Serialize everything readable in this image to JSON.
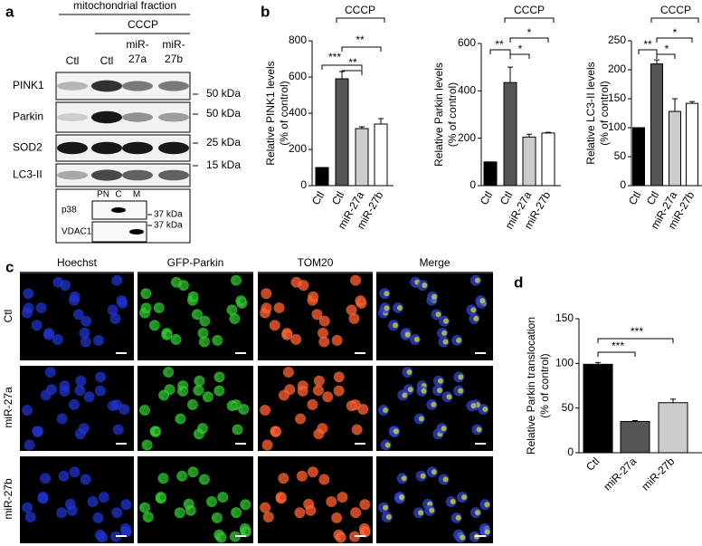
{
  "panel_labels": [
    "a",
    "b",
    "c",
    "d"
  ],
  "blot": {
    "header": "mitochondrial fraction",
    "treatment": "CCCP",
    "lanes": [
      [
        "Ctl"
      ],
      [
        "Ctl"
      ],
      [
        "miR-",
        "27a"
      ],
      [
        "miR-",
        "27b"
      ]
    ],
    "rows": [
      "PINK1",
      "Parkin",
      "SOD2",
      "LC3-II"
    ],
    "markers": [
      "50 kDa",
      "50 kDa",
      "25 kDa",
      "15 kDa"
    ],
    "inset": {
      "lanes": [
        "PN",
        "C",
        "M"
      ],
      "rows": [
        "p38",
        "VDAC1"
      ],
      "markers": [
        "37 kDa",
        "37 kDa"
      ]
    }
  },
  "microscopy": {
    "columns": [
      "Hoechst",
      "GFP-Parkin",
      "TOM20",
      "Merge"
    ],
    "rows": [
      "Ctl",
      "miR-27a",
      "miR-27b"
    ]
  },
  "chart_data": [
    {
      "type": "bar",
      "ylabel": [
        "Relative PINK1 levels",
        "(% of control)"
      ],
      "categories": [
        "Ctl",
        "Ctl",
        "miR-27a",
        "miR-27b"
      ],
      "values": [
        100,
        590,
        315,
        340
      ],
      "errors": [
        0,
        40,
        10,
        30
      ],
      "colors": [
        "#000000",
        "#555555",
        "#cccccc",
        "#ffffff"
      ],
      "ylim": [
        0,
        800
      ],
      "yticks": [
        0,
        200,
        400,
        600,
        800
      ],
      "annotations": [
        "CCCP",
        "**",
        "***",
        "**"
      ]
    },
    {
      "type": "bar",
      "ylabel": [
        "Relative Parkin levels",
        "(% of control)"
      ],
      "categories": [
        "Ctl",
        "Ctl",
        "miR-27a",
        "miR-27b"
      ],
      "values": [
        100,
        435,
        205,
        222
      ],
      "errors": [
        0,
        65,
        12,
        3
      ],
      "colors": [
        "#000000",
        "#555555",
        "#cccccc",
        "#ffffff"
      ],
      "ylim": [
        0,
        600
      ],
      "yticks": [
        0,
        200,
        400,
        600
      ],
      "annotations": [
        "CCCP",
        "*",
        "**",
        "*"
      ]
    },
    {
      "type": "bar",
      "ylabel": [
        "Relative LC3-II levels",
        "(% of control)"
      ],
      "categories": [
        "Ctl",
        "Ctl",
        "miR-27a",
        "miR-27b"
      ],
      "values": [
        100,
        210,
        128,
        142
      ],
      "errors": [
        0,
        7,
        22,
        3
      ],
      "colors": [
        "#000000",
        "#555555",
        "#cccccc",
        "#ffffff"
      ],
      "ylim": [
        0,
        250
      ],
      "yticks": [
        0,
        50,
        100,
        150,
        200,
        250
      ],
      "annotations": [
        "CCCP",
        "*",
        "**",
        "*"
      ]
    },
    {
      "type": "bar",
      "ylabel": [
        "Relative Parkin translocation",
        "(% of control)"
      ],
      "categories": [
        "Ctl",
        "miR-27a",
        "miR-27b"
      ],
      "values": [
        99,
        35,
        56
      ],
      "errors": [
        2,
        1,
        4
      ],
      "colors": [
        "#000000",
        "#555555",
        "#cccccc"
      ],
      "ylim": [
        0,
        150
      ],
      "yticks": [
        0,
        50,
        100,
        150
      ],
      "annotations": [
        "***",
        "***"
      ]
    }
  ]
}
